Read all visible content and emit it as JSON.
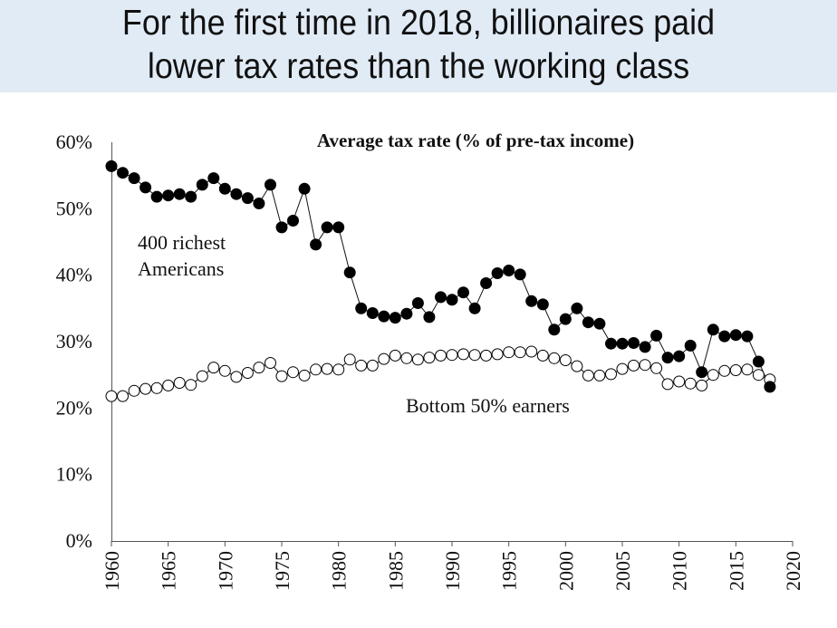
{
  "header": {
    "title_line1": "For the first time in 2018, billionaires paid",
    "title_line2": "lower tax rates than the working  class"
  },
  "colors": {
    "banner": "#e1ebf6",
    "series_filled": "#000000",
    "series_open": "#ffffff"
  },
  "chart_data": {
    "type": "line",
    "title": "Average tax rate (% of pre-tax income)",
    "xlabel": "",
    "ylabel": "",
    "xlim": [
      1960,
      2020
    ],
    "ylim": [
      0,
      60
    ],
    "x_ticks": [
      "1960",
      "1965",
      "1970",
      "1975",
      "1980",
      "1985",
      "1990",
      "1995",
      "2000",
      "2005",
      "2010",
      "2015",
      "2020"
    ],
    "y_ticks": [
      "0%",
      "10%",
      "20%",
      "30%",
      "40%",
      "50%",
      "60%"
    ],
    "grid": false,
    "series": [
      {
        "name": "400 richest Americans",
        "label_line1": "400 richest",
        "label_line2": "Americans",
        "marker": "filled-circle",
        "x": [
          1960,
          1961,
          1962,
          1963,
          1964,
          1965,
          1966,
          1967,
          1968,
          1969,
          1970,
          1971,
          1972,
          1973,
          1974,
          1975,
          1976,
          1977,
          1978,
          1979,
          1980,
          1981,
          1982,
          1983,
          1984,
          1985,
          1986,
          1987,
          1988,
          1989,
          1990,
          1991,
          1992,
          1993,
          1994,
          1995,
          1996,
          1997,
          1998,
          1999,
          2000,
          2001,
          2002,
          2003,
          2004,
          2005,
          2006,
          2007,
          2008,
          2009,
          2010,
          2011,
          2012,
          2013,
          2014,
          2015,
          2016,
          2017,
          2018
        ],
        "values": [
          56.4,
          55.4,
          54.6,
          53.2,
          51.8,
          52.0,
          52.2,
          51.8,
          53.6,
          54.6,
          53.0,
          52.2,
          51.6,
          50.8,
          53.6,
          47.2,
          48.2,
          53.0,
          44.6,
          47.2,
          47.2,
          40.4,
          35.0,
          34.3,
          33.8,
          33.6,
          34.2,
          35.8,
          33.7,
          36.7,
          36.3,
          37.4,
          35.0,
          38.8,
          40.3,
          40.7,
          40.1,
          36.1,
          35.6,
          31.8,
          33.4,
          35.0,
          32.9,
          32.7,
          29.7,
          29.7,
          29.8,
          29.2,
          30.9,
          27.6,
          27.8,
          29.4,
          25.4,
          31.8,
          30.8,
          31.0,
          30.8,
          27.0,
          23.2
        ]
      },
      {
        "name": "Bottom 50% earners",
        "label": "Bottom 50% earners",
        "marker": "open-circle",
        "x": [
          1960,
          1961,
          1962,
          1963,
          1964,
          1965,
          1966,
          1967,
          1968,
          1969,
          1970,
          1971,
          1972,
          1973,
          1974,
          1975,
          1976,
          1977,
          1978,
          1979,
          1980,
          1981,
          1982,
          1983,
          1984,
          1985,
          1986,
          1987,
          1988,
          1989,
          1990,
          1991,
          1992,
          1993,
          1994,
          1995,
          1996,
          1997,
          1998,
          1999,
          2000,
          2001,
          2002,
          2003,
          2004,
          2005,
          2006,
          2007,
          2008,
          2009,
          2010,
          2011,
          2012,
          2013,
          2014,
          2015,
          2016,
          2017,
          2018
        ],
        "values": [
          21.8,
          21.8,
          22.6,
          22.9,
          23.0,
          23.4,
          23.8,
          23.5,
          24.8,
          26.1,
          25.6,
          24.7,
          25.3,
          26.1,
          26.8,
          24.8,
          25.4,
          24.9,
          25.8,
          25.9,
          25.8,
          27.3,
          26.4,
          26.4,
          27.4,
          27.9,
          27.5,
          27.3,
          27.6,
          27.9,
          28.0,
          28.1,
          28.0,
          27.9,
          28.1,
          28.4,
          28.4,
          28.5,
          27.9,
          27.5,
          27.2,
          26.3,
          24.9,
          24.9,
          25.1,
          25.9,
          26.4,
          26.5,
          26.0,
          23.6,
          24.0,
          23.7,
          23.4,
          25.0,
          25.6,
          25.7,
          25.8,
          25.0,
          24.3
        ]
      }
    ]
  }
}
